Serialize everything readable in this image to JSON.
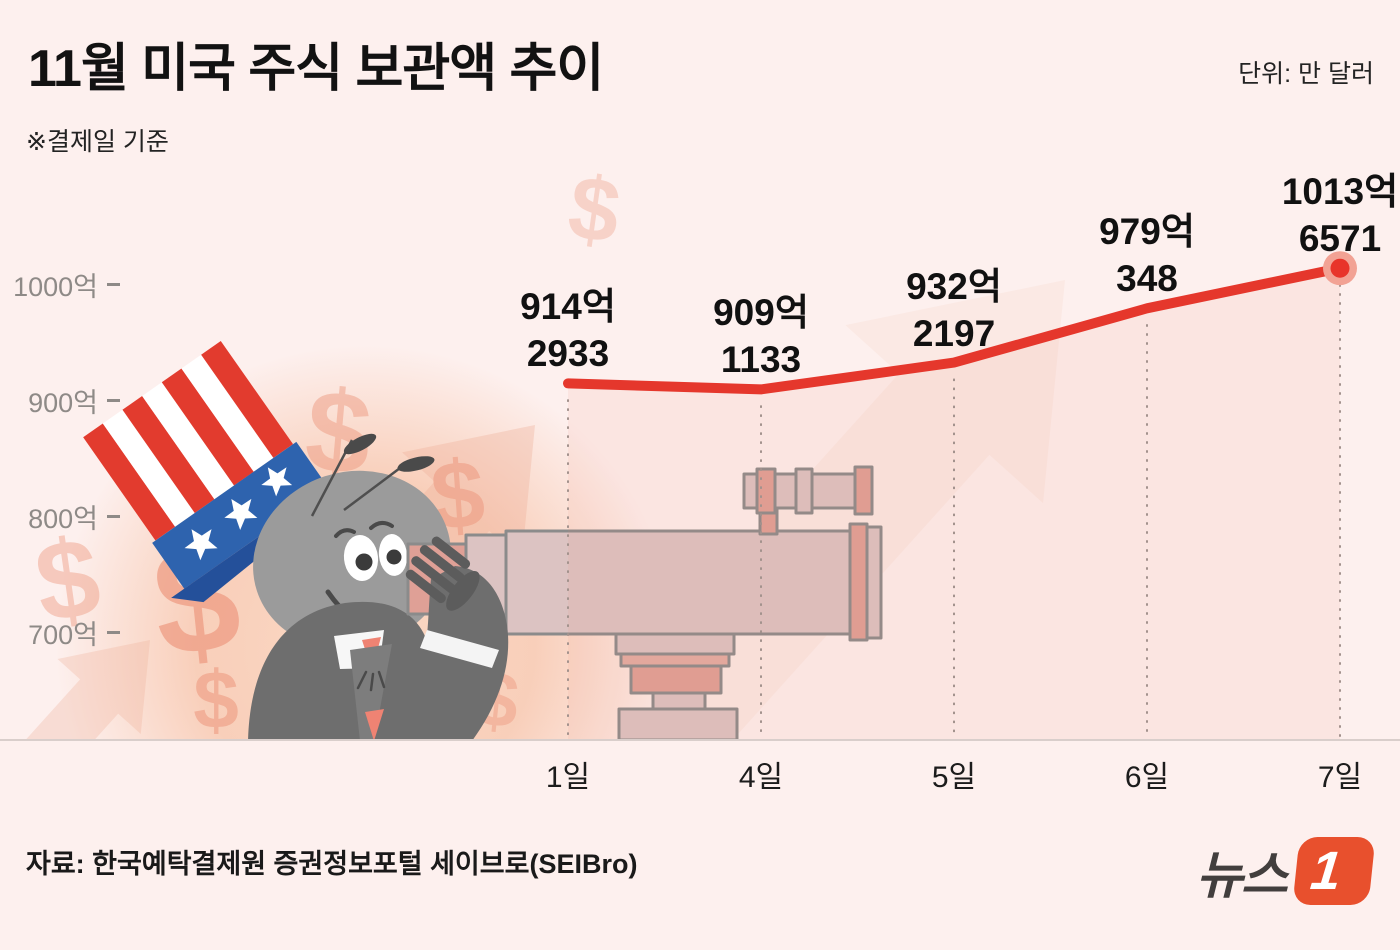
{
  "header": {
    "title": "11월 미국 주식 보관액 추이",
    "note": "※결제일 기준",
    "unit_label": "단위: 만 달러"
  },
  "chart_data": {
    "type": "line",
    "title": "11월 미국 주식 보관액 추이",
    "unit": "만 달러",
    "note": "결제일 기준",
    "categories": [
      "1일",
      "4일",
      "5일",
      "6일",
      "7일"
    ],
    "values_eok": [
      914.2933,
      909.1133,
      932.2197,
      979.0348,
      1013.6571
    ],
    "point_labels": [
      {
        "line1": "914억",
        "line2": "2933"
      },
      {
        "line1": "909억",
        "line2": "1133"
      },
      {
        "line1": "932억",
        "line2": "2197"
      },
      {
        "line1": "979억",
        "line2": "348"
      },
      {
        "line1": "1013억",
        "line2": "6571"
      }
    ],
    "y_ticks": [
      {
        "label": "1000억",
        "value": 1000
      },
      {
        "label": "900억",
        "value": 900
      },
      {
        "label": "800억",
        "value": 800
      },
      {
        "label": "700억",
        "value": 700
      }
    ],
    "ylim": [
      650,
      1060
    ],
    "legend": [],
    "grid": "dotted-vertical-from-points",
    "line_color": "#e5372c",
    "marker_color": "#e8342a",
    "marker_halo_color": "#f2a294",
    "area_fill_color": "rgba(235,140,120,0.10)",
    "axis_color": "#d9cecb"
  },
  "footer": {
    "source": "자료: 한국예탁결제원 증권정보포털 세이브로(SEIBro)",
    "logo_text": "뉴스",
    "logo_badge": "1",
    "logo_badge_color": "#e8502d"
  },
  "illustration": {
    "description": "ant character wearing US flag hat looking through a telescope, orange glow, dollar signs and rising arrows",
    "dollar_glyph": "$"
  }
}
